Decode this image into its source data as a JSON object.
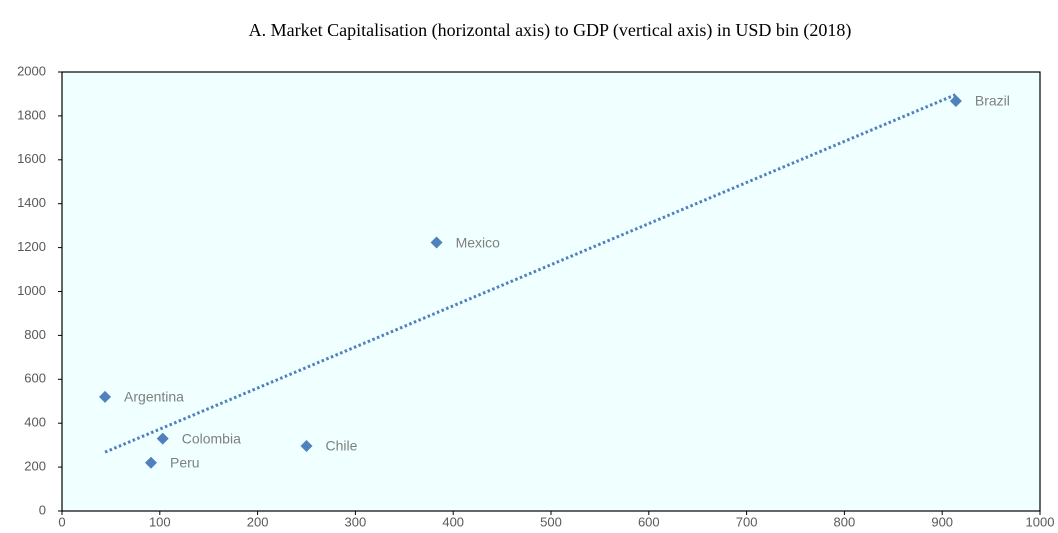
{
  "chart_data": {
    "type": "scatter",
    "title": "A. Market Capitalisation (horizontal axis) to GDP (vertical axis) in USD bin (2018)",
    "labels": [
      "Argentina",
      "Colombia",
      "Peru",
      "Chile",
      "Mexico",
      "Brazil"
    ],
    "x": [
      44,
      103,
      91,
      250,
      383,
      914
    ],
    "y": [
      520,
      330,
      220,
      296,
      1223,
      1868
    ],
    "color": "#4f81bd",
    "trendline": "linear",
    "xlim": [
      0,
      1000
    ],
    "xticks": [
      0,
      100,
      200,
      300,
      400,
      500,
      600,
      700,
      800,
      900,
      1000
    ],
    "ylim": [
      0,
      2000
    ],
    "yticks": [
      0,
      200,
      400,
      600,
      800,
      1000,
      1200,
      1400,
      1600,
      1800,
      2000
    ]
  }
}
